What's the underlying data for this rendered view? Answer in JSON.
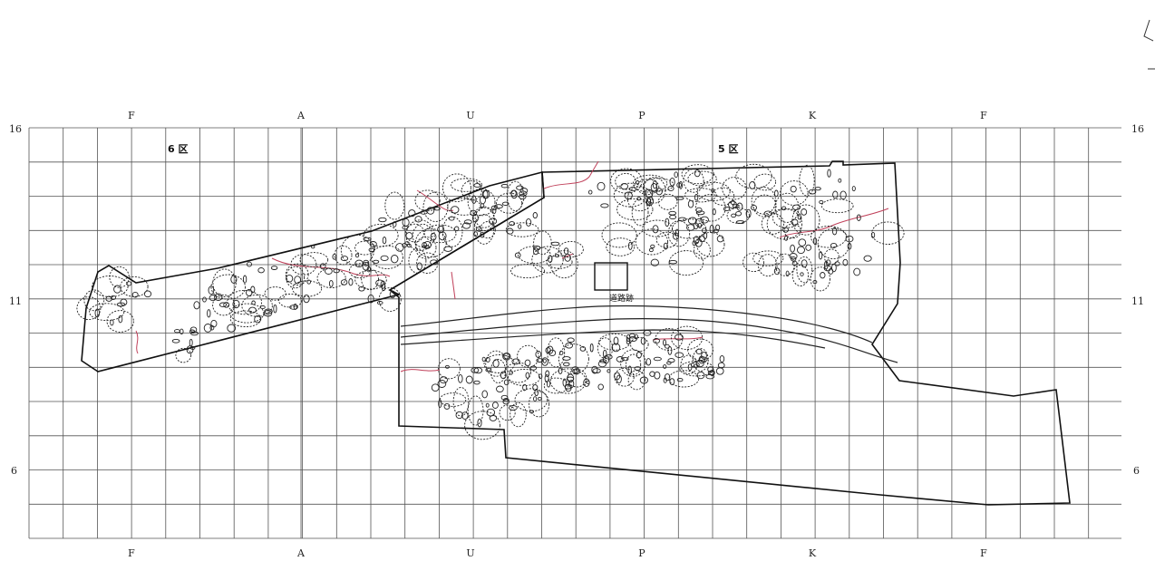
{
  "grid": {
    "col_labels": [
      "F",
      "A",
      "U",
      "P",
      "K",
      "F"
    ],
    "row_labels": [
      "16",
      "11",
      "6"
    ]
  },
  "zones": {
    "zone6": "6 区",
    "zone5": "5 区"
  },
  "road_label": "道路跡",
  "colors": {
    "grid": "#555555",
    "outline": "#111111",
    "features": "#222222",
    "channels": "#c0405a"
  }
}
